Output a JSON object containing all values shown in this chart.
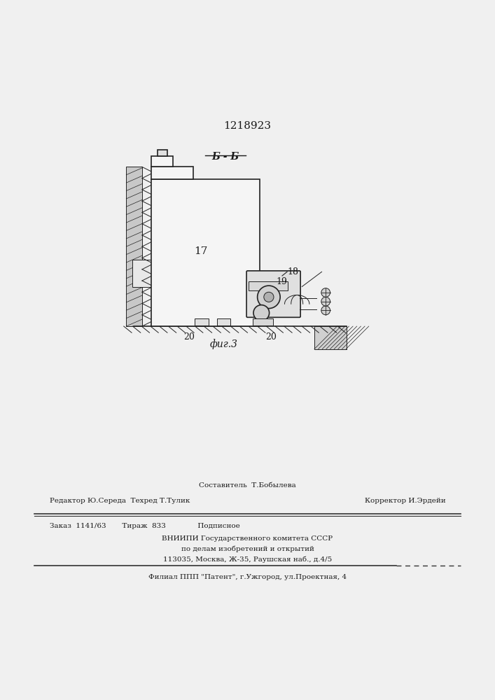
{
  "patent_number": "1218923",
  "background_color": "#f0f0f0",
  "fig_label": "Б - Б",
  "fig_name": "фиг.3",
  "footer_line1": "Составитель  Т.Бобылева",
  "footer_line2_left": "Редактор Ю.Середа  Техред Т.Тулик",
  "footer_line2_right": "Корректор И.Эрдейи",
  "footer_line3": "Заказ  1141/63       Тираж  833              Подписное",
  "footer_line4": "ВНИИПИ Государственного комитета СССР",
  "footer_line5": "по делам изобретений и открытий",
  "footer_line6": "113035, Москва, Ж-35, Раушская наб., д.4/5",
  "footer_line7": "Филиал ППП \"Патент\", г.Ужгород, ул.Проектная, 4"
}
